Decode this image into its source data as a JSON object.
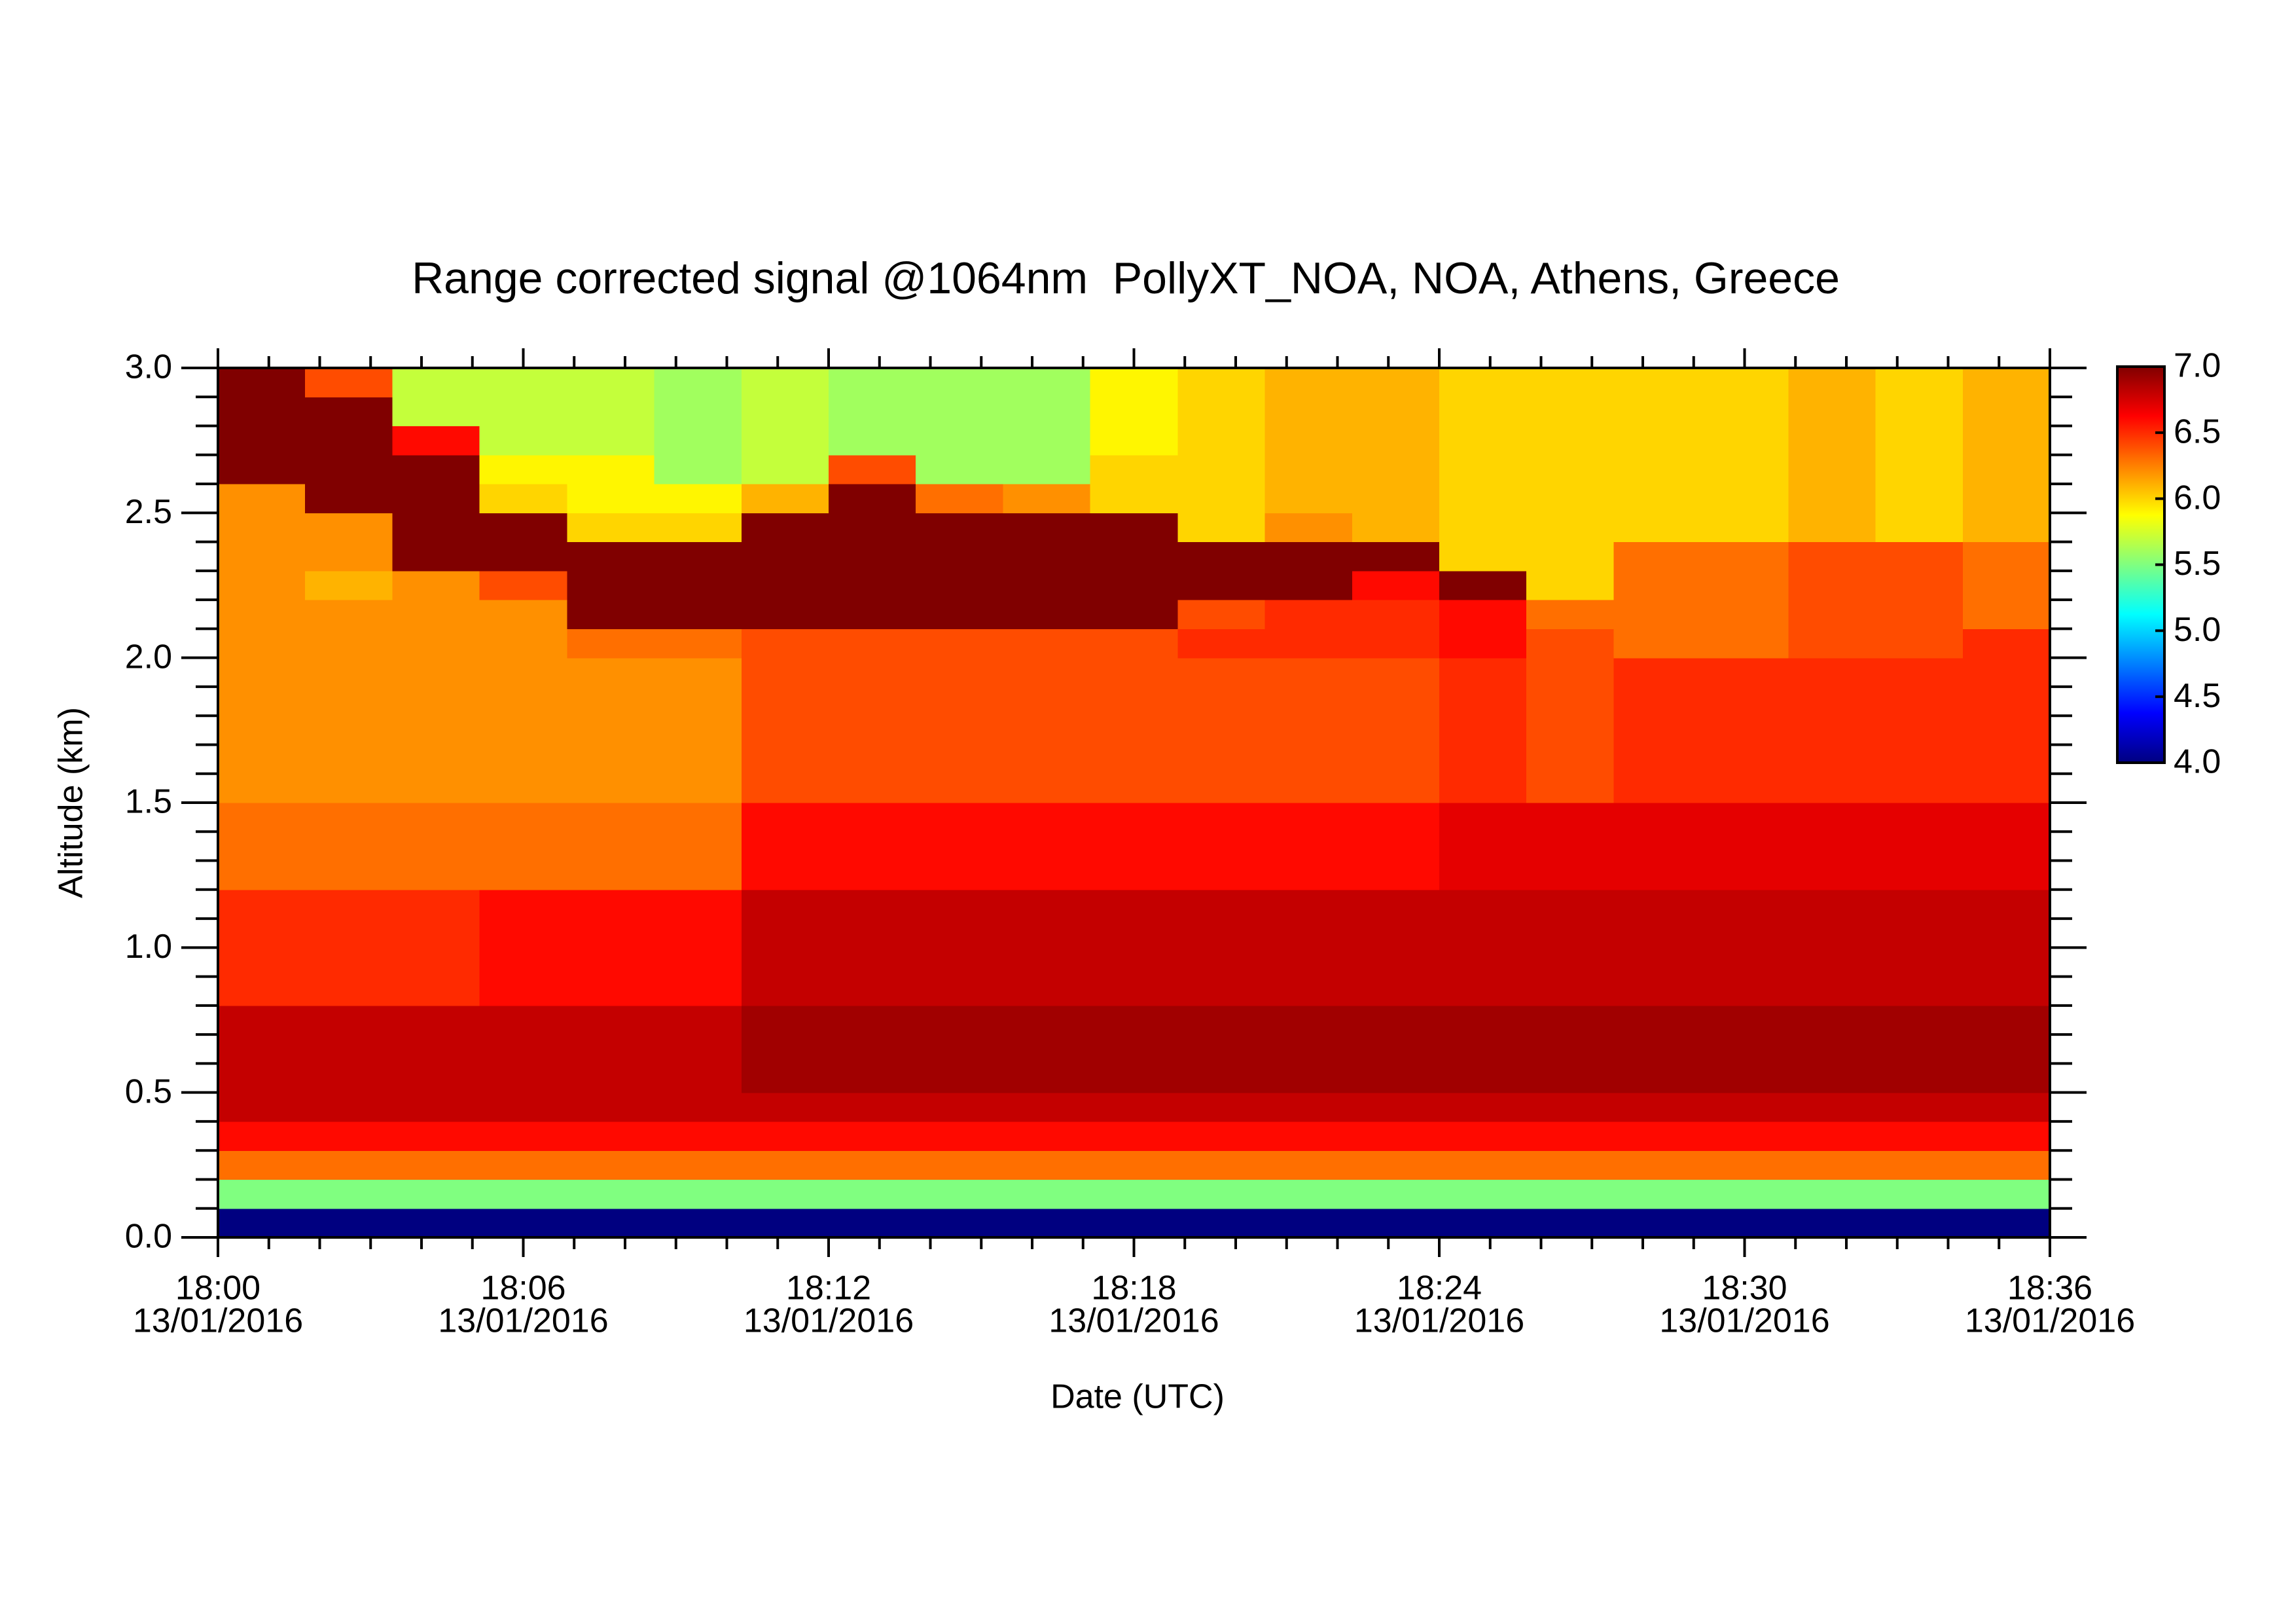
{
  "chart_data": {
    "type": "heatmap",
    "title": "Range corrected signal @1064nm  PollyXT_NOA, NOA, Athens, Greece",
    "xlabel": "Date (UTC)",
    "ylabel": "Altitude (km)",
    "x_edges": [
      0,
      1.71,
      3.43,
      5.14,
      6.86,
      8.57,
      10.29,
      12,
      13.71,
      15.43,
      17.14,
      18.86,
      20.57,
      22.29,
      24,
      25.71,
      27.43,
      29.14,
      30.86,
      32.57,
      34.29,
      36
    ],
    "y_edges": [
      0,
      0.1,
      0.2,
      0.3,
      0.4,
      0.5,
      0.6,
      0.7,
      0.8,
      0.9,
      1.0,
      1.1,
      1.2,
      1.3,
      1.4,
      1.5,
      1.6,
      1.7,
      1.8,
      1.9,
      2.0,
      2.1,
      2.2,
      2.3,
      2.4,
      2.5,
      2.6,
      2.7,
      2.8,
      2.9,
      3.0
    ],
    "z": [
      [
        4.0,
        4.0,
        4.0,
        4.0,
        4.0,
        4.0,
        4.0,
        4.0,
        4.0,
        4.0,
        4.0,
        4.0,
        4.0,
        4.0,
        4.0,
        4.0,
        4.0,
        4.0,
        4.0,
        4.0,
        4.0
      ],
      [
        5.5,
        5.5,
        5.5,
        5.5,
        5.5,
        5.5,
        5.5,
        5.5,
        5.5,
        5.5,
        5.5,
        5.5,
        5.5,
        5.5,
        5.5,
        5.5,
        5.5,
        5.5,
        5.5,
        5.5,
        5.5
      ],
      [
        6.3,
        6.3,
        6.3,
        6.3,
        6.3,
        6.3,
        6.3,
        6.3,
        6.3,
        6.3,
        6.3,
        6.3,
        6.3,
        6.3,
        6.3,
        6.3,
        6.3,
        6.3,
        6.3,
        6.3,
        6.3
      ],
      [
        6.6,
        6.6,
        6.6,
        6.6,
        6.6,
        6.6,
        6.6,
        6.6,
        6.6,
        6.6,
        6.6,
        6.6,
        6.6,
        6.6,
        6.6,
        6.6,
        6.6,
        6.6,
        6.6,
        6.6,
        6.6
      ],
      [
        6.8,
        6.8,
        6.8,
        6.8,
        6.8,
        6.8,
        6.8,
        6.8,
        6.8,
        6.8,
        6.8,
        6.8,
        6.8,
        6.8,
        6.8,
        6.8,
        6.8,
        6.8,
        6.8,
        6.8,
        6.8
      ],
      [
        6.8,
        6.8,
        6.8,
        6.8,
        6.8,
        6.8,
        6.9,
        6.9,
        6.9,
        6.9,
        6.9,
        6.9,
        6.9,
        6.9,
        6.9,
        6.9,
        6.9,
        6.9,
        6.9,
        6.9,
        6.9
      ],
      [
        6.8,
        6.8,
        6.8,
        6.8,
        6.8,
        6.8,
        6.9,
        6.9,
        6.9,
        6.9,
        6.9,
        6.9,
        6.9,
        6.9,
        6.9,
        6.9,
        6.9,
        6.9,
        6.9,
        6.9,
        6.9
      ],
      [
        6.8,
        6.8,
        6.8,
        6.8,
        6.8,
        6.8,
        6.9,
        6.9,
        6.9,
        6.9,
        6.9,
        6.9,
        6.9,
        6.9,
        6.9,
        6.9,
        6.9,
        6.9,
        6.9,
        6.9,
        6.9
      ],
      [
        6.5,
        6.5,
        6.5,
        6.6,
        6.6,
        6.6,
        6.8,
        6.8,
        6.8,
        6.8,
        6.8,
        6.8,
        6.8,
        6.8,
        6.8,
        6.8,
        6.8,
        6.8,
        6.8,
        6.8,
        6.8
      ],
      [
        6.5,
        6.5,
        6.5,
        6.6,
        6.6,
        6.6,
        6.8,
        6.8,
        6.8,
        6.8,
        6.8,
        6.8,
        6.8,
        6.8,
        6.8,
        6.8,
        6.8,
        6.8,
        6.8,
        6.8,
        6.8
      ],
      [
        6.5,
        6.5,
        6.5,
        6.6,
        6.6,
        6.6,
        6.8,
        6.8,
        6.8,
        6.8,
        6.8,
        6.8,
        6.8,
        6.8,
        6.8,
        6.8,
        6.8,
        6.8,
        6.8,
        6.8,
        6.8
      ],
      [
        6.5,
        6.5,
        6.5,
        6.6,
        6.6,
        6.6,
        6.8,
        6.8,
        6.8,
        6.8,
        6.8,
        6.8,
        6.8,
        6.8,
        6.8,
        6.8,
        6.8,
        6.8,
        6.8,
        6.8,
        6.8
      ],
      [
        6.3,
        6.3,
        6.3,
        6.3,
        6.3,
        6.3,
        6.6,
        6.6,
        6.6,
        6.6,
        6.6,
        6.6,
        6.6,
        6.6,
        6.7,
        6.7,
        6.7,
        6.7,
        6.7,
        6.7,
        6.7
      ],
      [
        6.3,
        6.3,
        6.3,
        6.3,
        6.3,
        6.3,
        6.6,
        6.6,
        6.6,
        6.6,
        6.6,
        6.6,
        6.6,
        6.6,
        6.7,
        6.7,
        6.7,
        6.7,
        6.7,
        6.7,
        6.7
      ],
      [
        6.3,
        6.3,
        6.3,
        6.3,
        6.3,
        6.3,
        6.6,
        6.6,
        6.6,
        6.6,
        6.6,
        6.6,
        6.6,
        6.6,
        6.7,
        6.7,
        6.7,
        6.7,
        6.7,
        6.7,
        6.7
      ],
      [
        6.2,
        6.2,
        6.2,
        6.2,
        6.2,
        6.2,
        6.4,
        6.4,
        6.4,
        6.4,
        6.4,
        6.4,
        6.4,
        6.4,
        6.5,
        6.4,
        6.5,
        6.5,
        6.5,
        6.5,
        6.5
      ],
      [
        6.2,
        6.2,
        6.2,
        6.2,
        6.2,
        6.2,
        6.4,
        6.4,
        6.4,
        6.4,
        6.4,
        6.4,
        6.4,
        6.4,
        6.5,
        6.4,
        6.5,
        6.5,
        6.5,
        6.5,
        6.5
      ],
      [
        6.2,
        6.2,
        6.2,
        6.2,
        6.2,
        6.2,
        6.4,
        6.4,
        6.4,
        6.4,
        6.4,
        6.4,
        6.4,
        6.4,
        6.5,
        6.4,
        6.5,
        6.5,
        6.5,
        6.5,
        6.5
      ],
      [
        6.2,
        6.2,
        6.2,
        6.2,
        6.2,
        6.2,
        6.4,
        6.4,
        6.4,
        6.4,
        6.4,
        6.4,
        6.4,
        6.4,
        6.5,
        6.4,
        6.5,
        6.5,
        6.5,
        6.5,
        6.5
      ],
      [
        6.2,
        6.2,
        6.2,
        6.2,
        6.2,
        6.2,
        6.4,
        6.4,
        6.4,
        6.4,
        6.4,
        6.4,
        6.4,
        6.4,
        6.5,
        6.4,
        6.5,
        6.5,
        6.5,
        6.5,
        6.5
      ],
      [
        6.2,
        6.2,
        6.2,
        6.2,
        6.3,
        6.3,
        6.4,
        6.4,
        6.4,
        6.4,
        6.4,
        6.5,
        6.5,
        6.5,
        6.6,
        6.4,
        6.3,
        6.3,
        6.4,
        6.4,
        6.5
      ],
      [
        6.2,
        6.2,
        6.2,
        6.2,
        7.0,
        7.0,
        7.0,
        7.0,
        7.0,
        7.0,
        7.0,
        6.4,
        6.5,
        6.5,
        6.6,
        6.3,
        6.3,
        6.3,
        6.4,
        6.4,
        6.3
      ],
      [
        6.2,
        6.1,
        6.2,
        6.4,
        7.0,
        7.0,
        7.0,
        7.0,
        7.0,
        7.0,
        7.0,
        7.0,
        7.0,
        6.6,
        7.0,
        6.0,
        6.3,
        6.3,
        6.4,
        6.4,
        6.3
      ],
      [
        6.2,
        6.2,
        7.0,
        7.0,
        7.0,
        7.0,
        7.0,
        7.0,
        7.0,
        7.0,
        7.0,
        7.0,
        7.0,
        7.0,
        6.0,
        6.0,
        6.3,
        6.3,
        6.4,
        6.4,
        6.3
      ],
      [
        6.2,
        6.2,
        7.0,
        7.0,
        6.0,
        6.0,
        7.0,
        7.0,
        7.0,
        7.0,
        7.0,
        6.0,
        6.2,
        6.1,
        6.0,
        6.0,
        6.0,
        6.0,
        6.1,
        6.0,
        6.1
      ],
      [
        6.2,
        7.0,
        7.0,
        6.0,
        5.9,
        5.9,
        6.1,
        7.0,
        6.3,
        6.2,
        6.0,
        6.0,
        6.1,
        6.1,
        6.0,
        6.0,
        6.0,
        6.0,
        6.1,
        6.0,
        6.1
      ],
      [
        7.0,
        7.0,
        7.0,
        5.9,
        5.9,
        5.6,
        5.7,
        6.4,
        5.6,
        5.6,
        6.0,
        6.0,
        6.1,
        6.1,
        6.0,
        6.0,
        6.0,
        6.0,
        6.1,
        6.0,
        6.1
      ],
      [
        7.0,
        7.0,
        6.6,
        5.7,
        5.7,
        5.6,
        5.7,
        5.6,
        5.6,
        5.6,
        5.9,
        6.0,
        6.1,
        6.1,
        6.0,
        6.0,
        6.0,
        6.0,
        6.1,
        6.0,
        6.1
      ],
      [
        7.0,
        7.0,
        5.7,
        5.7,
        5.7,
        5.6,
        5.7,
        5.6,
        5.6,
        5.6,
        5.9,
        6.0,
        6.1,
        6.1,
        6.0,
        6.0,
        6.0,
        6.0,
        6.1,
        6.0,
        6.1
      ],
      [
        7.0,
        6.4,
        5.7,
        5.7,
        5.7,
        5.6,
        5.7,
        5.6,
        5.6,
        5.6,
        5.9,
        6.0,
        6.1,
        6.1,
        6.0,
        6.0,
        6.0,
        6.0,
        6.1,
        6.0,
        6.1
      ]
    ],
    "xlim": [
      0,
      36
    ],
    "xticks": [
      {
        "value": 0,
        "label": "18:00",
        "sublabel": "13/01/2016"
      },
      {
        "value": 6,
        "label": "18:06",
        "sublabel": "13/01/2016"
      },
      {
        "value": 12,
        "label": "18:12",
        "sublabel": "13/01/2016"
      },
      {
        "value": 18,
        "label": "18:18",
        "sublabel": "13/01/2016"
      },
      {
        "value": 24,
        "label": "18:24",
        "sublabel": "13/01/2016"
      },
      {
        "value": 30,
        "label": "18:30",
        "sublabel": "13/01/2016"
      },
      {
        "value": 36,
        "label": "18:36",
        "sublabel": "13/01/2016"
      }
    ],
    "ylim": [
      0,
      3.0
    ],
    "yticks": [
      {
        "value": 0,
        "label": "0.0"
      },
      0.5,
      {
        "value": 1,
        "label": "1.0"
      },
      1.5,
      {
        "value": 2,
        "label": "2.0"
      },
      2.5,
      {
        "value": 3,
        "label": "3.0"
      }
    ],
    "colormap": "jet",
    "clim": [
      4.0,
      7.0
    ],
    "cticks": [
      {
        "value": 4,
        "label": "4.0"
      },
      4.5,
      {
        "value": 5,
        "label": "5.0"
      },
      5.5,
      {
        "value": 6,
        "label": "6.0"
      },
      6.5,
      {
        "value": 7,
        "label": "7.0"
      }
    ]
  }
}
